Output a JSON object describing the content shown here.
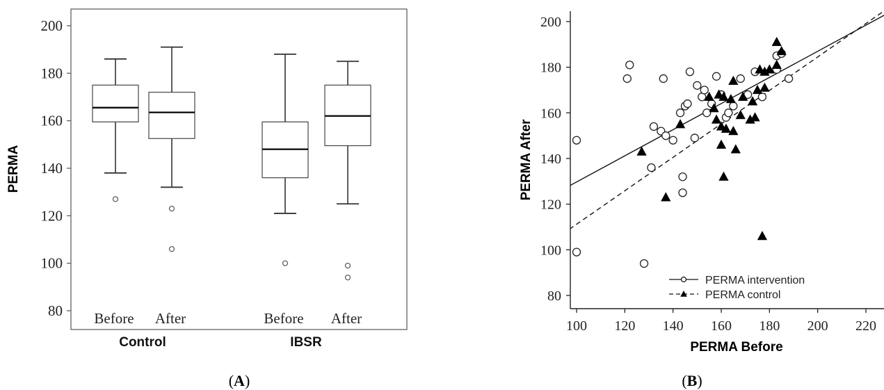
{
  "chart_data": [
    {
      "type": "box",
      "panel_label": "A",
      "ylabel": "PERMA",
      "ylim": [
        75,
        205
      ],
      "yticks": [
        80,
        100,
        120,
        140,
        160,
        180,
        200
      ],
      "groups": [
        {
          "name": "Control",
          "boxes": [
            {
              "label": "Before",
              "whisker_low": 138,
              "q1": 159.5,
              "median": 165.5,
              "q3": 175,
              "whisker_high": 186,
              "outliers": [
                127
              ]
            },
            {
              "label": "After",
              "whisker_low": 132,
              "q1": 152.5,
              "median": 163.5,
              "q3": 172,
              "whisker_high": 191,
              "outliers": [
                123,
                106
              ]
            }
          ]
        },
        {
          "name": "IBSR",
          "boxes": [
            {
              "label": "Before",
              "whisker_low": 121,
              "q1": 136,
              "median": 148,
              "q3": 159.5,
              "whisker_high": 188,
              "outliers": [
                100
              ]
            },
            {
              "label": "After",
              "whisker_low": 125,
              "q1": 149.5,
              "median": 162,
              "q3": 175,
              "whisker_high": 185,
              "outliers": [
                99,
                94
              ]
            }
          ]
        }
      ]
    },
    {
      "type": "scatter",
      "panel_label": "B",
      "xlabel": "PERMA Before",
      "ylabel": "PERMA After",
      "xlim": [
        97,
        228
      ],
      "ylim": [
        75,
        205
      ],
      "xticks": [
        100,
        120,
        140,
        160,
        180,
        200,
        220
      ],
      "yticks": [
        80,
        100,
        120,
        140,
        160,
        180,
        200
      ],
      "series": [
        {
          "name": "PERMA intervention",
          "marker": "circle",
          "line": "solid",
          "fit_line": [
            [
              97,
              128
            ],
            [
              228,
              203
            ]
          ],
          "points": [
            [
              100,
              148
            ],
            [
              100,
              99
            ],
            [
              121,
              175
            ],
            [
              122,
              181
            ],
            [
              128,
              94
            ],
            [
              131,
              136
            ],
            [
              132,
              154
            ],
            [
              135,
              152
            ],
            [
              136,
              175
            ],
            [
              137,
              150
            ],
            [
              140,
              148
            ],
            [
              143,
              160
            ],
            [
              144,
              125
            ],
            [
              144,
              132
            ],
            [
              145,
              163
            ],
            [
              146,
              164
            ],
            [
              147,
              178
            ],
            [
              149,
              149
            ],
            [
              150,
              172
            ],
            [
              152,
              167
            ],
            [
              153,
              170
            ],
            [
              154,
              160
            ],
            [
              156,
              164
            ],
            [
              158,
              176
            ],
            [
              160,
              168
            ],
            [
              162,
              158
            ],
            [
              163,
              160
            ],
            [
              165,
              163
            ],
            [
              168,
              175
            ],
            [
              171,
              168
            ],
            [
              174,
              178
            ],
            [
              177,
              167
            ],
            [
              183,
              185
            ],
            [
              183,
              179
            ],
            [
              185,
              186
            ],
            [
              188,
              175
            ]
          ]
        },
        {
          "name": "PERMA control",
          "marker": "triangle",
          "line": "dashed",
          "fit_line": [
            [
              97,
              109
            ],
            [
              228,
              205
            ]
          ],
          "points": [
            [
              127,
              143
            ],
            [
              137,
              123
            ],
            [
              143,
              155
            ],
            [
              155,
              167
            ],
            [
              157,
              162
            ],
            [
              158,
              157
            ],
            [
              159,
              168
            ],
            [
              160,
              146
            ],
            [
              160,
              154
            ],
            [
              161,
              167
            ],
            [
              161,
              132
            ],
            [
              162,
              153
            ],
            [
              164,
              166
            ],
            [
              165,
              152
            ],
            [
              165,
              174
            ],
            [
              166,
              144
            ],
            [
              168,
              159
            ],
            [
              169,
              167
            ],
            [
              172,
              157
            ],
            [
              173,
              165
            ],
            [
              174,
              158
            ],
            [
              175,
              170
            ],
            [
              176,
              179
            ],
            [
              178,
              178
            ],
            [
              180,
              179
            ],
            [
              183,
              181
            ],
            [
              183,
              191
            ],
            [
              185,
              187
            ],
            [
              177,
              106
            ],
            [
              178,
              171
            ]
          ]
        }
      ]
    }
  ]
}
